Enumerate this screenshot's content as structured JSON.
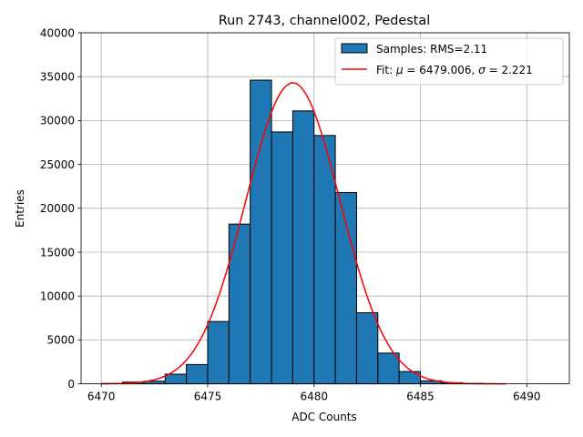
{
  "chart_data": {
    "type": "bar",
    "title": "Run 2743, channel002, Pedestal",
    "xlabel": "ADC Counts",
    "ylabel": "Entries",
    "xlim": [
      6469.05,
      6492.0
    ],
    "ylim": [
      0,
      40000
    ],
    "xticks": [
      6470,
      6475,
      6480,
      6485,
      6490
    ],
    "yticks": [
      0,
      5000,
      10000,
      15000,
      20000,
      25000,
      30000,
      35000,
      40000
    ],
    "grid": true,
    "legend_position": "top-right",
    "histogram": {
      "name": "Samples: RMS=2.11",
      "color": "#1f77b4",
      "bin_edges": [
        6470,
        6471,
        6472,
        6473,
        6474,
        6475,
        6476,
        6477,
        6478,
        6479,
        6480,
        6481,
        6482,
        6483,
        6484,
        6485,
        6486,
        6487,
        6488,
        6489,
        6490,
        6491
      ],
      "counts": [
        30,
        200,
        300,
        1100,
        2200,
        7100,
        18200,
        34600,
        28700,
        31100,
        28300,
        21800,
        8100,
        3500,
        1400,
        350,
        130,
        40,
        10,
        0,
        0
      ]
    },
    "fit": {
      "name_prefix": "Fit: ",
      "name_math": [
        {
          "t": "μ",
          "italic": true
        },
        {
          "t": " = 6479.006, ",
          "italic": false
        },
        {
          "t": "σ",
          "italic": true
        },
        {
          "t": " = 2.221",
          "italic": false
        }
      ],
      "color": "#ff0000",
      "mu": 6479.006,
      "sigma": 2.221,
      "amplitude": 34300,
      "x_range": [
        6470,
        6489
      ]
    }
  }
}
